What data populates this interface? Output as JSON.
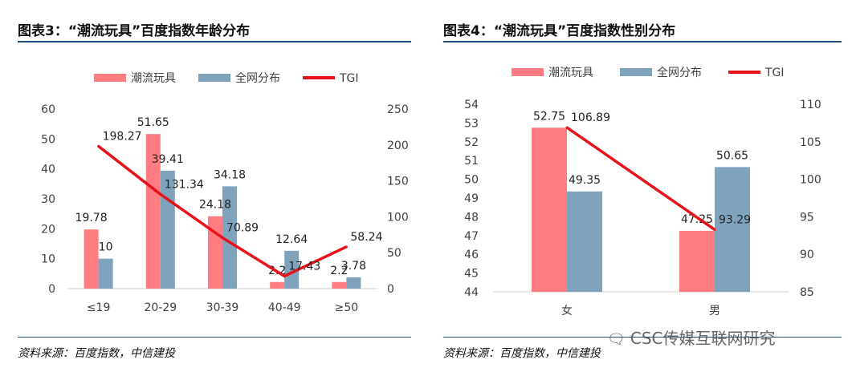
{
  "left_figure": {
    "title": "图表3：“潮流玩具”百度指数年龄分布",
    "source": "资料来源：百度指数，中信建投"
  },
  "right_figure": {
    "title": "图表4：“潮流玩具”百度指数性别分布",
    "source": "资料来源：百度指数，中信建投"
  },
  "watermark": {
    "icon": "wechat-icon",
    "text": "CSC传媒互联网研究"
  },
  "colors": {
    "bar1": "#ff7c80",
    "bar2": "#7fa3bd",
    "line": "#e8121b",
    "axis": "#cfcfcf",
    "text": "#404040"
  },
  "chart_data": [
    {
      "type": "bar",
      "categories": [
        "≤19",
        "20-29",
        "30-39",
        "40-49",
        "≥50"
      ],
      "series": [
        {
          "name": "潮流玩具",
          "values": [
            19.78,
            51.65,
            24.18,
            2.2,
            2.2
          ],
          "labels": [
            "19.78",
            "51.65",
            "24.18",
            "2.2",
            "2.2"
          ]
        },
        {
          "name": "全网分布",
          "values": [
            10,
            39.41,
            34.18,
            12.64,
            3.78
          ],
          "labels": [
            "10",
            "39.41",
            "34.18",
            "12.64",
            "3.78"
          ]
        }
      ],
      "line_series": {
        "name": "TGI",
        "values": [
          198.27,
          131.34,
          70.89,
          17.43,
          58.24
        ],
        "labels": [
          "198.27",
          "131.34",
          "70.89",
          "17.43",
          "58.24"
        ]
      },
      "ylim": [
        0,
        60
      ],
      "yticks": [
        "0",
        "10",
        "20",
        "30",
        "40",
        "50",
        "60"
      ],
      "y2lim": [
        0,
        250
      ],
      "y2ticks": [
        "0",
        "50",
        "100",
        "150",
        "200",
        "250"
      ],
      "legend": "top-center",
      "grid": false
    },
    {
      "type": "bar",
      "categories": [
        "女",
        "男"
      ],
      "series": [
        {
          "name": "潮流玩具",
          "values": [
            52.75,
            47.25
          ],
          "labels": [
            "52.75",
            "47.25"
          ]
        },
        {
          "name": "全网分布",
          "values": [
            49.35,
            50.65
          ],
          "labels": [
            "49.35",
            "50.65"
          ]
        }
      ],
      "line_series": {
        "name": "TGI",
        "values": [
          106.89,
          93.29
        ],
        "labels": [
          "106.89",
          "93.29"
        ]
      },
      "ylim": [
        44,
        54
      ],
      "yticks": [
        "44",
        "45",
        "46",
        "47",
        "48",
        "49",
        "50",
        "51",
        "52",
        "53",
        "54"
      ],
      "y2lim": [
        85,
        110
      ],
      "y2ticks": [
        "85",
        "90",
        "95",
        "100",
        "105",
        "110"
      ],
      "legend": "top-center",
      "grid": false
    }
  ]
}
